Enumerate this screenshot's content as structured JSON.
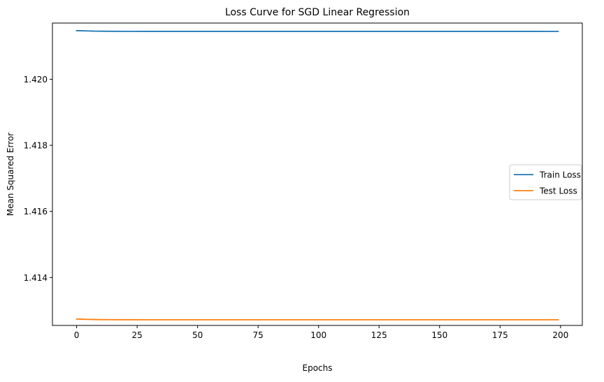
{
  "chart_data": {
    "type": "line",
    "title": "Loss Curve for SGD Linear Regression",
    "xlabel": "Epochs",
    "ylabel": "Mean Squared Error",
    "xlim": [
      -10,
      209
    ],
    "ylim": [
      1.41255,
      1.4217
    ],
    "xticks": [
      0,
      25,
      50,
      75,
      100,
      125,
      150,
      175,
      200
    ],
    "xtick_labels": [
      "0",
      "25",
      "50",
      "75",
      "100",
      "125",
      "150",
      "175",
      "200"
    ],
    "yticks": [
      1.414,
      1.416,
      1.418,
      1.42
    ],
    "ytick_labels": [
      "1.414",
      "1.416",
      "1.418",
      "1.420"
    ],
    "grid": false,
    "legend_position": "center-right",
    "series": [
      {
        "name": "Train Loss",
        "color": "#1f77b4",
        "x": [
          0,
          2,
          4,
          6,
          8,
          10,
          15,
          20,
          30,
          50,
          100,
          150,
          199
        ],
        "values": [
          1.42147,
          1.421466,
          1.421462,
          1.421458,
          1.421455,
          1.421453,
          1.42145,
          1.421449,
          1.421448,
          1.421448,
          1.421448,
          1.421448,
          1.421447
        ]
      },
      {
        "name": "Test Loss",
        "color": "#ff7f0e",
        "x": [
          0,
          2,
          4,
          6,
          8,
          10,
          15,
          20,
          30,
          50,
          100,
          150,
          199
        ],
        "values": [
          1.412745,
          1.412739,
          1.412735,
          1.412731,
          1.412728,
          1.412726,
          1.412724,
          1.412723,
          1.412722,
          1.412722,
          1.412722,
          1.412722,
          1.412721
        ]
      }
    ]
  }
}
